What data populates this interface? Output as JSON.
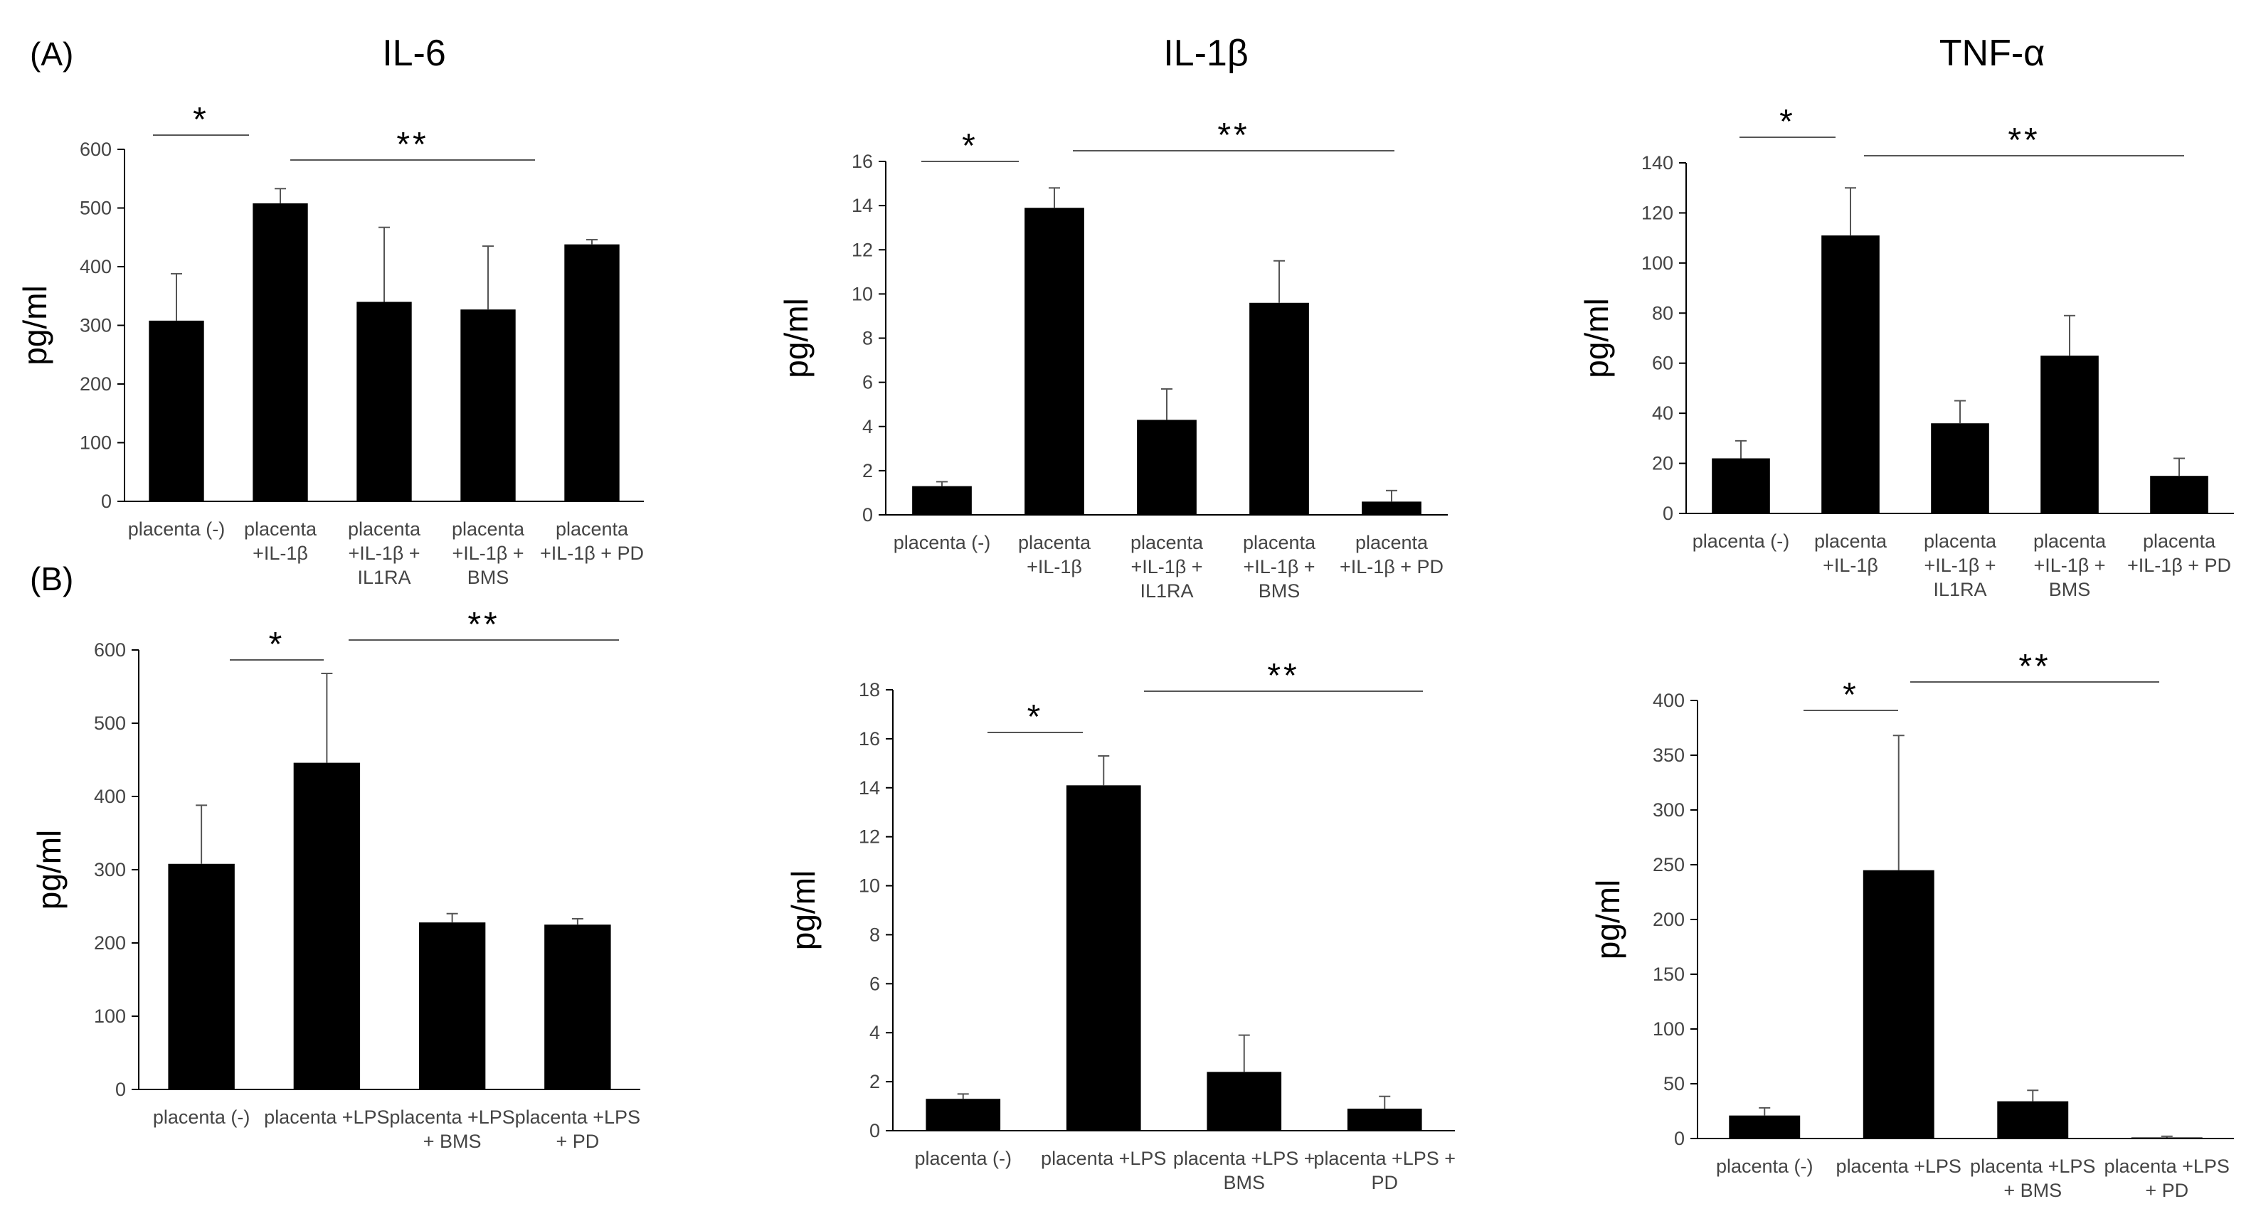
{
  "figure": {
    "panel_labels": [
      "(A)",
      "(B)"
    ],
    "column_titles": [
      "IL-6",
      "IL-1β",
      "TNF-α"
    ]
  },
  "chart_data": [
    {
      "type": "bar",
      "panel": "(A)",
      "title": "IL-6",
      "ylabel": "pg/ml",
      "ylim": [
        0,
        600
      ],
      "yticks": [
        "0",
        "100",
        "200",
        "300",
        "400",
        "500",
        "600"
      ],
      "categories": [
        [
          "placenta (-)"
        ],
        [
          "placenta",
          "+IL-1β"
        ],
        [
          "placenta",
          "+IL-1β +",
          "IL1RA"
        ],
        [
          "placenta",
          "+IL-1β +",
          "BMS"
        ],
        [
          "placenta",
          "+IL-1β + PD"
        ]
      ],
      "values": [
        308,
        508,
        340,
        327,
        438
      ],
      "errors": [
        80,
        25,
        127,
        108,
        8
      ],
      "significance": [
        {
          "label": "*",
          "from": 0,
          "to": 0
        },
        {
          "label": "**",
          "from": 1,
          "to": 3
        }
      ]
    },
    {
      "type": "bar",
      "panel": "(A)",
      "title": "IL-1β",
      "ylabel": "pg/ml",
      "ylim": [
        0,
        16
      ],
      "yticks": [
        "0",
        "2",
        "4",
        "6",
        "8",
        "10",
        "12",
        "14",
        "16"
      ],
      "categories": [
        [
          "placenta (-)"
        ],
        [
          "placenta",
          "+IL-1β"
        ],
        [
          "placenta",
          "+IL-1β +",
          "IL1RA"
        ],
        [
          "placenta",
          "+IL-1β +",
          "BMS"
        ],
        [
          "placenta",
          "+IL-1β + PD"
        ]
      ],
      "values": [
        1.3,
        13.9,
        4.3,
        9.6,
        0.6
      ],
      "errors": [
        0.2,
        0.9,
        1.4,
        1.9,
        0.5
      ],
      "significance": [
        {
          "label": "*",
          "from": 0,
          "to": 0
        },
        {
          "label": "**",
          "from": 1,
          "to": 4
        }
      ]
    },
    {
      "type": "bar",
      "panel": "(A)",
      "title": "TNF-α",
      "ylabel": "pg/ml",
      "ylim": [
        0,
        140
      ],
      "yticks": [
        "0",
        "20",
        "40",
        "60",
        "80",
        "100",
        "120",
        "140"
      ],
      "categories": [
        [
          "placenta (-)"
        ],
        [
          "placenta",
          "+IL-1β"
        ],
        [
          "placenta",
          "+IL-1β +",
          "IL1RA"
        ],
        [
          "placenta",
          "+IL-1β +",
          "BMS"
        ],
        [
          "placenta",
          "+IL-1β + PD"
        ]
      ],
      "values": [
        22,
        111,
        36,
        63,
        15
      ],
      "errors": [
        7,
        19,
        9,
        16,
        7
      ],
      "significance": [
        {
          "label": "*",
          "from": 0,
          "to": 0
        },
        {
          "label": "**",
          "from": 1,
          "to": 4
        }
      ]
    },
    {
      "type": "bar",
      "panel": "(B)",
      "title": "IL-6",
      "ylabel": "pg/ml",
      "ylim": [
        0,
        600
      ],
      "yticks": [
        "0",
        "100",
        "200",
        "300",
        "400",
        "500",
        "600"
      ],
      "categories": [
        [
          "placenta (-)"
        ],
        [
          "placenta +LPS"
        ],
        [
          "placenta +LPS",
          "+ BMS"
        ],
        [
          "placenta +LPS",
          "+ PD"
        ]
      ],
      "values": [
        308,
        446,
        228,
        225
      ],
      "errors": [
        80,
        122,
        12,
        8
      ],
      "significance": [
        {
          "label": "*",
          "from": 0,
          "to": 1
        },
        {
          "label": "**",
          "from": 1,
          "to": 3
        }
      ]
    },
    {
      "type": "bar",
      "panel": "(B)",
      "title": "IL-1β",
      "ylabel": "pg/ml",
      "ylim": [
        0,
        18
      ],
      "yticks": [
        "0",
        "2",
        "4",
        "6",
        "8",
        "10",
        "12",
        "14",
        "16",
        "18"
      ],
      "categories": [
        [
          "placenta (-)"
        ],
        [
          "placenta +LPS"
        ],
        [
          "placenta +LPS +",
          "BMS"
        ],
        [
          "placenta +LPS +",
          "PD"
        ]
      ],
      "values": [
        1.3,
        14.1,
        2.4,
        0.9
      ],
      "errors": [
        0.2,
        1.2,
        1.5,
        0.5
      ],
      "significance": [
        {
          "label": "*",
          "from": 0,
          "to": 1
        },
        {
          "label": "**",
          "from": 1,
          "to": 3
        }
      ]
    },
    {
      "type": "bar",
      "panel": "(B)",
      "title": "TNF-α",
      "ylabel": "pg/ml",
      "ylim": [
        0,
        400
      ],
      "yticks": [
        "0",
        "50",
        "100",
        "150",
        "200",
        "250",
        "300",
        "350",
        "400"
      ],
      "categories": [
        [
          "placenta (-)"
        ],
        [
          "placenta +LPS"
        ],
        [
          "placenta +LPS",
          "+ BMS"
        ],
        [
          "placenta +LPS",
          "+ PD"
        ]
      ],
      "values": [
        21,
        245,
        34,
        1
      ],
      "errors": [
        7,
        123,
        10,
        1
      ],
      "significance": [
        {
          "label": "*",
          "from": 0,
          "to": 1
        },
        {
          "label": "**",
          "from": 1,
          "to": 3
        }
      ]
    }
  ]
}
